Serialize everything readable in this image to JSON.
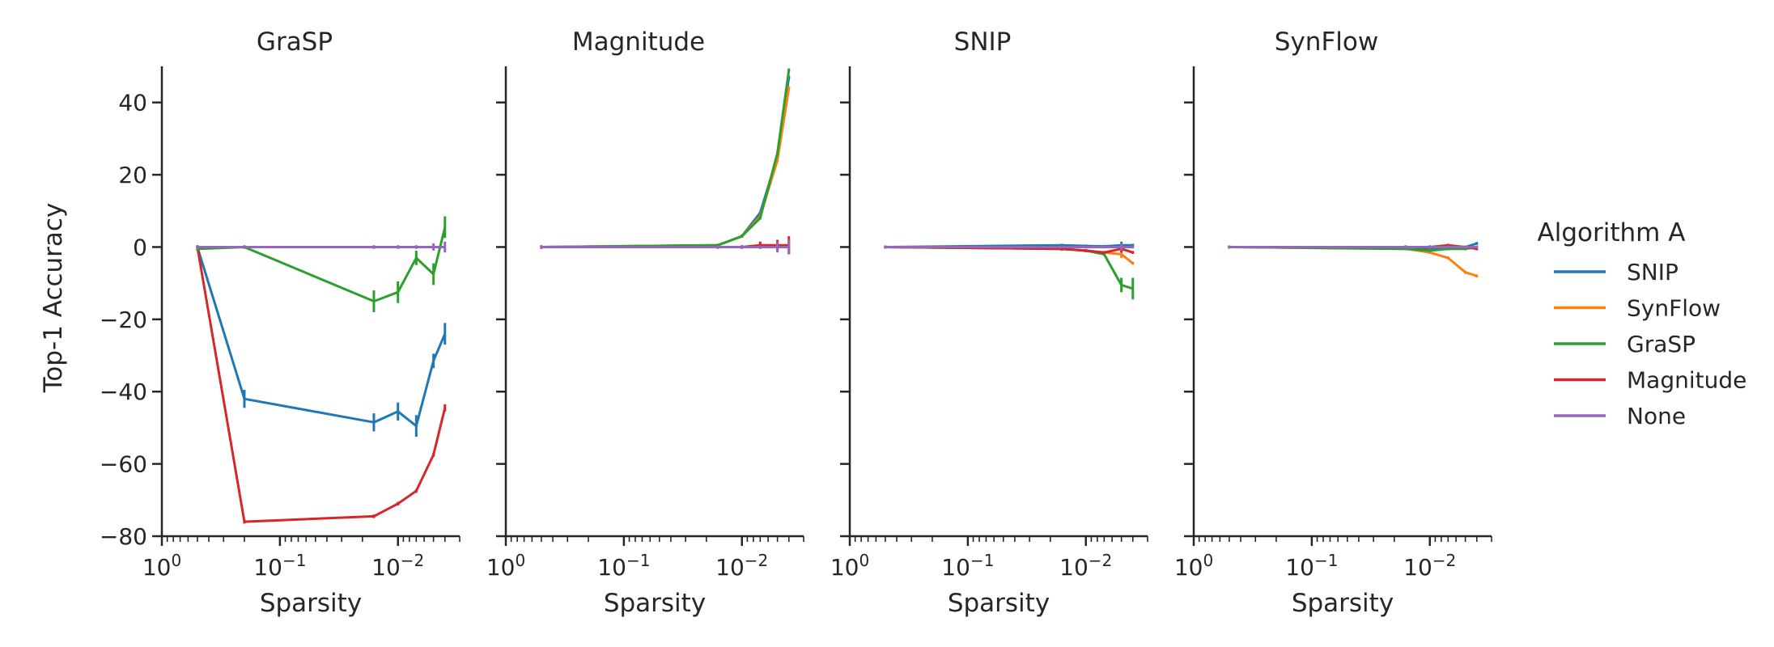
{
  "chart_data": {
    "type": "line",
    "shared_ylabel": "Top-1 Accuracy",
    "xlabel": "Sparsity",
    "xscale": "log",
    "x_reversed": true,
    "xlim": [
      1,
      0.003
    ],
    "ylim": [
      -80,
      50
    ],
    "yticks": [
      40,
      20,
      0,
      -20,
      -40,
      -60,
      -80
    ],
    "ytick_labels": [
      "40",
      "20",
      "0",
      "−20",
      "−40",
      "−60",
      "−80"
    ],
    "xticks": [
      1,
      0.1,
      0.01
    ],
    "legend": {
      "title": "Algorithm A",
      "placement": "right"
    },
    "series_styles": [
      {
        "name": "SNIP",
        "color": "#1f77b4"
      },
      {
        "name": "SynFlow",
        "color": "#ff7f0e"
      },
      {
        "name": "GraSP",
        "color": "#2ca02c"
      },
      {
        "name": "Magnitude",
        "color": "#d62728"
      },
      {
        "name": "None",
        "color": "#9467bd"
      }
    ],
    "panels": [
      {
        "title": "GraSP",
        "series": [
          {
            "name": "SNIP",
            "points": [
              {
                "x": 0.5,
                "y": 0,
                "err": 0.5
              },
              {
                "x": 0.2,
                "y": -42,
                "err": 2.5
              },
              {
                "x": 0.016,
                "y": -48.5,
                "err": 2.5
              },
              {
                "x": 0.01,
                "y": -45.5,
                "err": 2.5
              },
              {
                "x": 0.007,
                "y": -49.5,
                "err": 3
              },
              {
                "x": 0.005,
                "y": -31.5,
                "err": 2
              },
              {
                "x": 0.004,
                "y": -24,
                "err": 3
              }
            ]
          },
          {
            "name": "Magnitude",
            "points": [
              {
                "x": 0.5,
                "y": 0,
                "err": 0.5
              },
              {
                "x": 0.2,
                "y": -76,
                "err": 0.5
              },
              {
                "x": 0.016,
                "y": -74.5,
                "err": 0.5
              },
              {
                "x": 0.01,
                "y": -71,
                "err": 0.5
              },
              {
                "x": 0.007,
                "y": -67.5,
                "err": 0.5
              },
              {
                "x": 0.005,
                "y": -57.5,
                "err": 0.5
              },
              {
                "x": 0.004,
                "y": -44.5,
                "err": 1
              }
            ]
          },
          {
            "name": "GraSP",
            "points": [
              {
                "x": 0.5,
                "y": -0.5,
                "err": 0.5
              },
              {
                "x": 0.2,
                "y": 0,
                "err": 0.5
              },
              {
                "x": 0.016,
                "y": -15,
                "err": 3
              },
              {
                "x": 0.01,
                "y": -12.5,
                "err": 3
              },
              {
                "x": 0.007,
                "y": -3,
                "err": 2
              },
              {
                "x": 0.005,
                "y": -7.5,
                "err": 3
              },
              {
                "x": 0.004,
                "y": 5.5,
                "err": 3
              }
            ]
          },
          {
            "name": "None",
            "points": [
              {
                "x": 0.5,
                "y": 0,
                "err": 0.5
              },
              {
                "x": 0.2,
                "y": 0,
                "err": 0.3
              },
              {
                "x": 0.016,
                "y": 0,
                "err": 0.5
              },
              {
                "x": 0.01,
                "y": 0,
                "err": 0.5
              },
              {
                "x": 0.007,
                "y": 0,
                "err": 0.5
              },
              {
                "x": 0.005,
                "y": 0,
                "err": 1
              },
              {
                "x": 0.004,
                "y": 0,
                "err": 1.5
              }
            ]
          }
        ]
      },
      {
        "title": "Magnitude",
        "series": [
          {
            "name": "SNIP",
            "points": [
              {
                "x": 0.5,
                "y": 0
              },
              {
                "x": 0.016,
                "y": 0.5
              },
              {
                "x": 0.01,
                "y": 3
              },
              {
                "x": 0.007,
                "y": 9.5
              },
              {
                "x": 0.005,
                "y": 25
              },
              {
                "x": 0.004,
                "y": 47
              }
            ]
          },
          {
            "name": "SynFlow",
            "points": [
              {
                "x": 0.5,
                "y": 0
              },
              {
                "x": 0.016,
                "y": 0.5
              },
              {
                "x": 0.01,
                "y": 3
              },
              {
                "x": 0.007,
                "y": 8.5
              },
              {
                "x": 0.005,
                "y": 24
              },
              {
                "x": 0.004,
                "y": 44
              }
            ]
          },
          {
            "name": "GraSP",
            "points": [
              {
                "x": 0.5,
                "y": 0
              },
              {
                "x": 0.016,
                "y": 0.5
              },
              {
                "x": 0.01,
                "y": 3
              },
              {
                "x": 0.007,
                "y": 8
              },
              {
                "x": 0.005,
                "y": 26
              },
              {
                "x": 0.004,
                "y": 49
              }
            ]
          },
          {
            "name": "Magnitude",
            "points": [
              {
                "x": 0.5,
                "y": 0,
                "err": 0.5
              },
              {
                "x": 0.016,
                "y": 0,
                "err": 0.5
              },
              {
                "x": 0.01,
                "y": 0,
                "err": 0.5
              },
              {
                "x": 0.007,
                "y": 0.5,
                "err": 1
              },
              {
                "x": 0.005,
                "y": 0.5,
                "err": 1.5
              },
              {
                "x": 0.004,
                "y": 0.5,
                "err": 2.5
              }
            ]
          },
          {
            "name": "None",
            "points": [
              {
                "x": 0.5,
                "y": 0,
                "err": 0.3
              },
              {
                "x": 0.016,
                "y": 0,
                "err": 0.5
              },
              {
                "x": 0.01,
                "y": 0,
                "err": 0.5
              },
              {
                "x": 0.007,
                "y": 0,
                "err": 0.5
              },
              {
                "x": 0.005,
                "y": 0,
                "err": 1.5
              },
              {
                "x": 0.004,
                "y": 0,
                "err": 2
              }
            ]
          }
        ]
      },
      {
        "title": "SNIP",
        "series": [
          {
            "name": "SNIP",
            "points": [
              {
                "x": 0.5,
                "y": 0
              },
              {
                "x": 0.016,
                "y": 0.5
              },
              {
                "x": 0.01,
                "y": 0.3
              },
              {
                "x": 0.007,
                "y": 0.2
              },
              {
                "x": 0.005,
                "y": 0.5,
                "err": 1
              },
              {
                "x": 0.004,
                "y": 0.5
              }
            ]
          },
          {
            "name": "SynFlow",
            "points": [
              {
                "x": 0.5,
                "y": 0
              },
              {
                "x": 0.016,
                "y": -0.5
              },
              {
                "x": 0.01,
                "y": -1
              },
              {
                "x": 0.007,
                "y": -1.5
              },
              {
                "x": 0.005,
                "y": -2,
                "err": 1
              },
              {
                "x": 0.004,
                "y": -4.5
              }
            ]
          },
          {
            "name": "GraSP",
            "points": [
              {
                "x": 0.5,
                "y": 0
              },
              {
                "x": 0.016,
                "y": -0.5
              },
              {
                "x": 0.01,
                "y": -1
              },
              {
                "x": 0.007,
                "y": -2
              },
              {
                "x": 0.005,
                "y": -10.5,
                "err": 2
              },
              {
                "x": 0.004,
                "y": -11.5,
                "err": 3
              }
            ]
          },
          {
            "name": "Magnitude",
            "points": [
              {
                "x": 0.5,
                "y": 0
              },
              {
                "x": 0.016,
                "y": -0.5,
                "err": 0.5
              },
              {
                "x": 0.01,
                "y": -1
              },
              {
                "x": 0.007,
                "y": -1.5
              },
              {
                "x": 0.005,
                "y": -0.5,
                "err": 1
              },
              {
                "x": 0.004,
                "y": -1.5
              }
            ]
          },
          {
            "name": "None",
            "points": [
              {
                "x": 0.5,
                "y": 0
              },
              {
                "x": 0.016,
                "y": 0
              },
              {
                "x": 0.01,
                "y": 0
              },
              {
                "x": 0.007,
                "y": 0
              },
              {
                "x": 0.005,
                "y": 0,
                "err": 1
              },
              {
                "x": 0.004,
                "y": 0
              }
            ]
          }
        ]
      },
      {
        "title": "SynFlow",
        "series": [
          {
            "name": "SNIP",
            "points": [
              {
                "x": 0.5,
                "y": 0
              },
              {
                "x": 0.016,
                "y": 0
              },
              {
                "x": 0.01,
                "y": -0.5
              },
              {
                "x": 0.007,
                "y": 0
              },
              {
                "x": 0.005,
                "y": 0
              },
              {
                "x": 0.004,
                "y": 1
              }
            ]
          },
          {
            "name": "SynFlow",
            "points": [
              {
                "x": 0.5,
                "y": 0
              },
              {
                "x": 0.016,
                "y": -0.5
              },
              {
                "x": 0.01,
                "y": -1.5
              },
              {
                "x": 0.007,
                "y": -3
              },
              {
                "x": 0.005,
                "y": -7
              },
              {
                "x": 0.004,
                "y": -8
              }
            ]
          },
          {
            "name": "GraSP",
            "points": [
              {
                "x": 0.5,
                "y": 0
              },
              {
                "x": 0.016,
                "y": -0.5
              },
              {
                "x": 0.01,
                "y": -1
              },
              {
                "x": 0.007,
                "y": -0.5
              },
              {
                "x": 0.005,
                "y": -0.5
              },
              {
                "x": 0.004,
                "y": 0
              }
            ]
          },
          {
            "name": "Magnitude",
            "points": [
              {
                "x": 0.5,
                "y": 0
              },
              {
                "x": 0.016,
                "y": 0
              },
              {
                "x": 0.01,
                "y": 0
              },
              {
                "x": 0.007,
                "y": 0.5
              },
              {
                "x": 0.005,
                "y": 0
              },
              {
                "x": 0.004,
                "y": -0.5
              }
            ]
          },
          {
            "name": "None",
            "points": [
              {
                "x": 0.5,
                "y": 0
              },
              {
                "x": 0.016,
                "y": 0,
                "err": 0.5
              },
              {
                "x": 0.01,
                "y": 0,
                "err": 0.5
              },
              {
                "x": 0.007,
                "y": 0
              },
              {
                "x": 0.005,
                "y": 0
              },
              {
                "x": 0.004,
                "y": 0
              }
            ]
          }
        ]
      }
    ]
  }
}
